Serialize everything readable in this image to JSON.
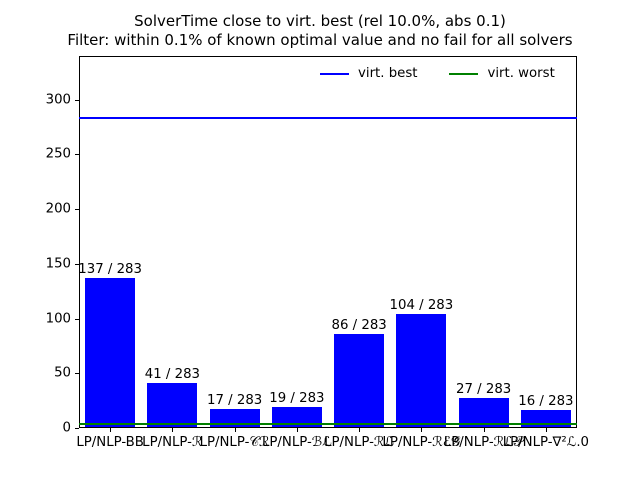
{
  "title": {
    "line1": "SolverTime close to virt. best (rel 10.0%, abs 0.1)",
    "line2": "Filter: within 0.1% of known optimal value and no fail for all solvers"
  },
  "legend": {
    "items": [
      {
        "label": "virt. best",
        "color": "#0000ff"
      },
      {
        "label": "virt. worst",
        "color": "#008000"
      }
    ],
    "position": "upper-right-inside",
    "frame": false
  },
  "chart_data": {
    "type": "bar",
    "title": "SolverTime close to virt. best (rel 10.0%, abs 0.1)\nFilter: within 0.1% of known optimal value and no fail for all solvers",
    "categories": [
      "LP/NLP-BB",
      "LP/NLP-ℛ",
      "LP/NLP-𝒞ℛ",
      "LP/NLP-ℬℒ",
      "LP/NLP-ℛℒ",
      "LP/NLP-ℛℰ𝒢",
      "LP/NLP-ℛℒ𝒫",
      "LP/NLP-∇²ℒ.0"
    ],
    "values": [
      137,
      41,
      17,
      19,
      86,
      104,
      27,
      16
    ],
    "bar_labels": [
      "137 / 283",
      "41 / 283",
      "17 / 283",
      "19 / 283",
      "86 / 283",
      "104 / 283",
      "27 / 283",
      "16 / 283"
    ],
    "total_instances": 283,
    "bar_color": "#0000ff",
    "hlines": [
      {
        "name": "virt. best",
        "value": 283,
        "color": "#0000ff"
      },
      {
        "name": "virt. worst",
        "value": 4,
        "color": "#008000"
      }
    ],
    "xlabel": "",
    "ylabel": "",
    "ylim": [
      0,
      340
    ],
    "yticks": [
      0,
      50,
      100,
      150,
      200,
      250,
      300
    ],
    "grid": false,
    "notes": "x tick labels overlap each other horizontally"
  }
}
